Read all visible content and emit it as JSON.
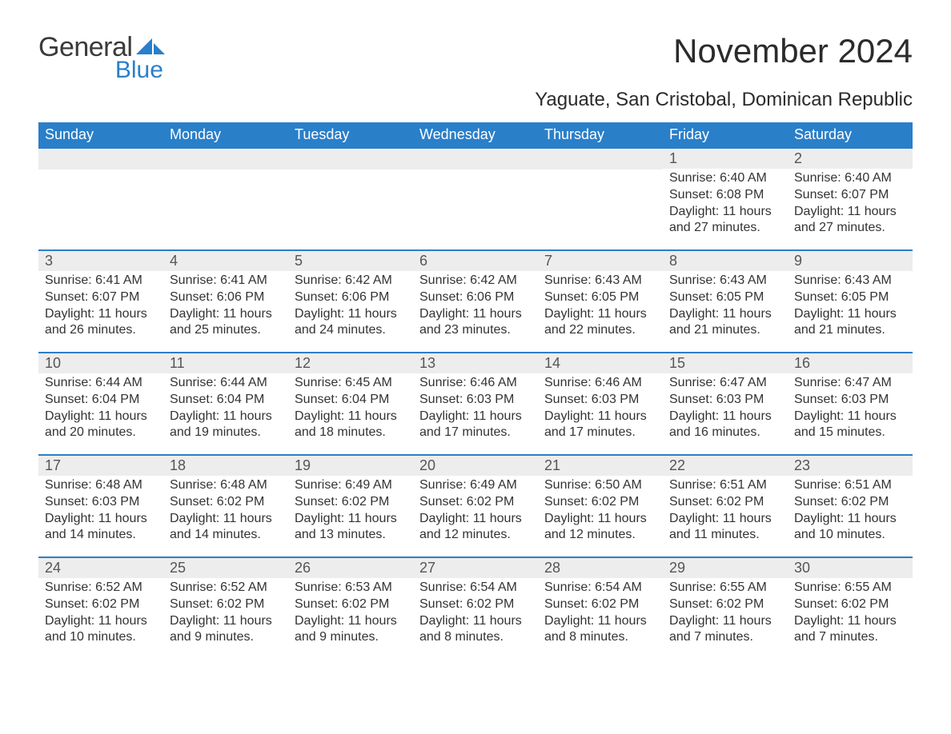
{
  "brand": {
    "main": "General",
    "sub": "Blue",
    "color": "#2a7fc9"
  },
  "title": "November 2024",
  "subtitle": "Yaguate, San Cristobal, Dominican Republic",
  "colors": {
    "header_bg": "#2a7fc9",
    "header_text": "#ffffff",
    "daynum_bg": "#ededed",
    "row_border": "#2a7fc9",
    "text": "#333333"
  },
  "day_headers": [
    "Sunday",
    "Monday",
    "Tuesday",
    "Wednesday",
    "Thursday",
    "Friday",
    "Saturday"
  ],
  "labels": {
    "sunrise": "Sunrise:",
    "sunset": "Sunset:",
    "daylight": "Daylight:"
  },
  "weeks": [
    [
      {
        "blank": true
      },
      {
        "blank": true
      },
      {
        "blank": true
      },
      {
        "blank": true
      },
      {
        "blank": true
      },
      {
        "n": "1",
        "sunrise": "6:40 AM",
        "sunset": "6:08 PM",
        "daylight": "11 hours and 27 minutes."
      },
      {
        "n": "2",
        "sunrise": "6:40 AM",
        "sunset": "6:07 PM",
        "daylight": "11 hours and 27 minutes."
      }
    ],
    [
      {
        "n": "3",
        "sunrise": "6:41 AM",
        "sunset": "6:07 PM",
        "daylight": "11 hours and 26 minutes."
      },
      {
        "n": "4",
        "sunrise": "6:41 AM",
        "sunset": "6:06 PM",
        "daylight": "11 hours and 25 minutes."
      },
      {
        "n": "5",
        "sunrise": "6:42 AM",
        "sunset": "6:06 PM",
        "daylight": "11 hours and 24 minutes."
      },
      {
        "n": "6",
        "sunrise": "6:42 AM",
        "sunset": "6:06 PM",
        "daylight": "11 hours and 23 minutes."
      },
      {
        "n": "7",
        "sunrise": "6:43 AM",
        "sunset": "6:05 PM",
        "daylight": "11 hours and 22 minutes."
      },
      {
        "n": "8",
        "sunrise": "6:43 AM",
        "sunset": "6:05 PM",
        "daylight": "11 hours and 21 minutes."
      },
      {
        "n": "9",
        "sunrise": "6:43 AM",
        "sunset": "6:05 PM",
        "daylight": "11 hours and 21 minutes."
      }
    ],
    [
      {
        "n": "10",
        "sunrise": "6:44 AM",
        "sunset": "6:04 PM",
        "daylight": "11 hours and 20 minutes."
      },
      {
        "n": "11",
        "sunrise": "6:44 AM",
        "sunset": "6:04 PM",
        "daylight": "11 hours and 19 minutes."
      },
      {
        "n": "12",
        "sunrise": "6:45 AM",
        "sunset": "6:04 PM",
        "daylight": "11 hours and 18 minutes."
      },
      {
        "n": "13",
        "sunrise": "6:46 AM",
        "sunset": "6:03 PM",
        "daylight": "11 hours and 17 minutes."
      },
      {
        "n": "14",
        "sunrise": "6:46 AM",
        "sunset": "6:03 PM",
        "daylight": "11 hours and 17 minutes."
      },
      {
        "n": "15",
        "sunrise": "6:47 AM",
        "sunset": "6:03 PM",
        "daylight": "11 hours and 16 minutes."
      },
      {
        "n": "16",
        "sunrise": "6:47 AM",
        "sunset": "6:03 PM",
        "daylight": "11 hours and 15 minutes."
      }
    ],
    [
      {
        "n": "17",
        "sunrise": "6:48 AM",
        "sunset": "6:03 PM",
        "daylight": "11 hours and 14 minutes."
      },
      {
        "n": "18",
        "sunrise": "6:48 AM",
        "sunset": "6:02 PM",
        "daylight": "11 hours and 14 minutes."
      },
      {
        "n": "19",
        "sunrise": "6:49 AM",
        "sunset": "6:02 PM",
        "daylight": "11 hours and 13 minutes."
      },
      {
        "n": "20",
        "sunrise": "6:49 AM",
        "sunset": "6:02 PM",
        "daylight": "11 hours and 12 minutes."
      },
      {
        "n": "21",
        "sunrise": "6:50 AM",
        "sunset": "6:02 PM",
        "daylight": "11 hours and 12 minutes."
      },
      {
        "n": "22",
        "sunrise": "6:51 AM",
        "sunset": "6:02 PM",
        "daylight": "11 hours and 11 minutes."
      },
      {
        "n": "23",
        "sunrise": "6:51 AM",
        "sunset": "6:02 PM",
        "daylight": "11 hours and 10 minutes."
      }
    ],
    [
      {
        "n": "24",
        "sunrise": "6:52 AM",
        "sunset": "6:02 PM",
        "daylight": "11 hours and 10 minutes."
      },
      {
        "n": "25",
        "sunrise": "6:52 AM",
        "sunset": "6:02 PM",
        "daylight": "11 hours and 9 minutes."
      },
      {
        "n": "26",
        "sunrise": "6:53 AM",
        "sunset": "6:02 PM",
        "daylight": "11 hours and 9 minutes."
      },
      {
        "n": "27",
        "sunrise": "6:54 AM",
        "sunset": "6:02 PM",
        "daylight": "11 hours and 8 minutes."
      },
      {
        "n": "28",
        "sunrise": "6:54 AM",
        "sunset": "6:02 PM",
        "daylight": "11 hours and 8 minutes."
      },
      {
        "n": "29",
        "sunrise": "6:55 AM",
        "sunset": "6:02 PM",
        "daylight": "11 hours and 7 minutes."
      },
      {
        "n": "30",
        "sunrise": "6:55 AM",
        "sunset": "6:02 PM",
        "daylight": "11 hours and 7 minutes."
      }
    ]
  ]
}
